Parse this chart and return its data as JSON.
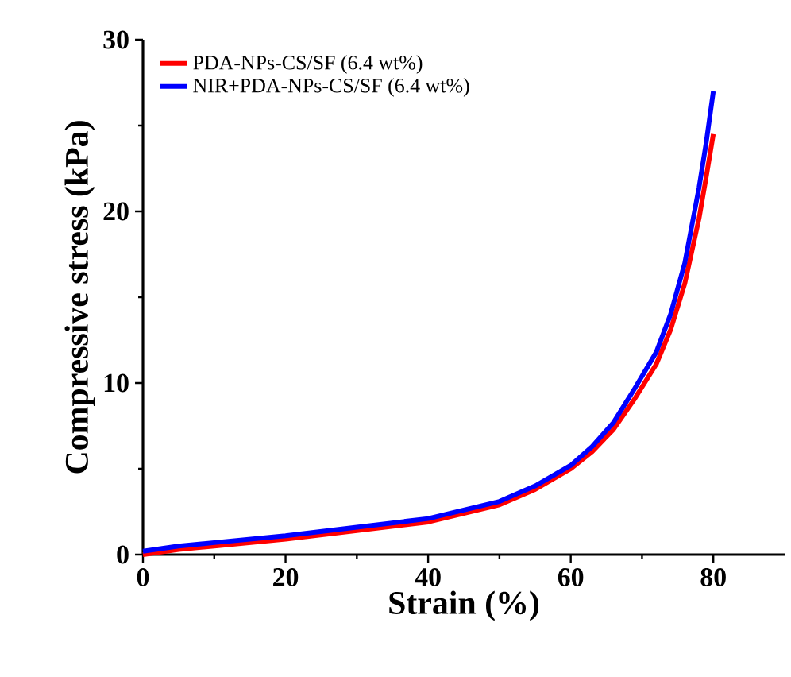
{
  "chart_data": {
    "type": "line",
    "xlabel": "Strain (%)",
    "ylabel": "Compressive stress (kPa)",
    "x": [
      0,
      5,
      10,
      20,
      30,
      40,
      45,
      50,
      55,
      60,
      63,
      66,
      69,
      72,
      74,
      76,
      78,
      79,
      80
    ],
    "series": [
      {
        "name": "PDA-NPs-CS/SF (6.4 wt%)",
        "color": "#ff0000",
        "values": [
          0.0,
          0.3,
          0.5,
          0.9,
          1.4,
          1.9,
          2.4,
          2.9,
          3.8,
          5.0,
          6.0,
          7.3,
          9.1,
          11.1,
          13.1,
          15.8,
          19.6,
          22.0,
          24.5
        ]
      },
      {
        "name": "NIR+PDA-NPs-CS/SF (6.4 wt%)",
        "color": "#0000ff",
        "values": [
          0.2,
          0.5,
          0.7,
          1.1,
          1.6,
          2.1,
          2.6,
          3.1,
          4.0,
          5.2,
          6.3,
          7.7,
          9.7,
          11.8,
          14.0,
          17.0,
          21.4,
          24.0,
          27.0
        ]
      }
    ],
    "xlim": [
      0,
      90
    ],
    "xticks": [
      0,
      20,
      40,
      60,
      80
    ],
    "ylim": [
      0,
      30
    ],
    "yticks": [
      0,
      10,
      20,
      30
    ],
    "grid": false,
    "legend": "top left",
    "marker": "none",
    "line_style": "solid"
  }
}
